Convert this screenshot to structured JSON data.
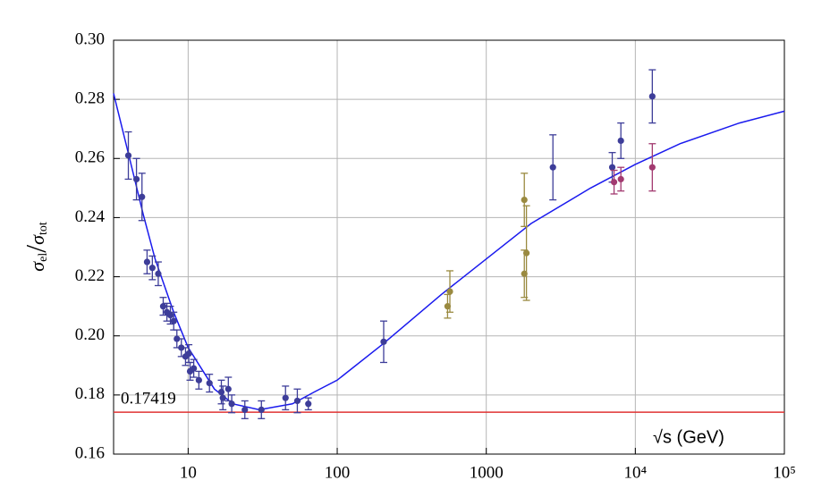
{
  "chart_data": {
    "type": "scatter",
    "xlabel": "√s (GeV)",
    "ylabel": [
      "σ",
      "el",
      "/",
      "σ",
      "tot"
    ],
    "log_x": true,
    "grid": true,
    "xlim": [
      3.16,
      100000
    ],
    "ylim": [
      0.16,
      0.3
    ],
    "xticks": [
      10,
      100,
      1000,
      {
        "value": 10000,
        "label": "10⁴"
      },
      {
        "value": 100000,
        "label": "10⁵"
      }
    ],
    "yticks": [
      0.16,
      0.18,
      {
        "value": 0.2,
        "label": "0.20"
      },
      0.22,
      0.24,
      0.26,
      0.28,
      {
        "value": 0.3,
        "label": "0.30"
      }
    ],
    "reference_line": {
      "value": 0.17419,
      "color": "#e03232"
    },
    "fit": {
      "color": "#1a1aee",
      "x": [
        3.16,
        4,
        5,
        6,
        8,
        10,
        15,
        20,
        30,
        50,
        70,
        100,
        200,
        500,
        1000,
        2000,
        5000,
        10000,
        20000,
        50000,
        100000
      ],
      "values": [
        0.282,
        0.261,
        0.241,
        0.226,
        0.208,
        0.196,
        0.182,
        0.177,
        0.175,
        0.177,
        0.181,
        0.185,
        0.197,
        0.214,
        0.226,
        0.238,
        0.25,
        0.258,
        0.265,
        0.272,
        0.276
      ]
    },
    "series": [
      {
        "color": "#3d3d99",
        "x": [
          3.97,
          4.5,
          4.9,
          5.3,
          5.75,
          6.3,
          6.8,
          7.2,
          7.6,
          8.0,
          8.4,
          9.0,
          9.6,
          10.1,
          10.3,
          10.9,
          11.8,
          13.9,
          16.7,
          17.1,
          18.6,
          19.6,
          24,
          31,
          45,
          54,
          64,
          205,
          2800,
          7000,
          8000,
          13000
        ],
        "values": [
          0.261,
          0.253,
          0.247,
          0.225,
          0.223,
          0.221,
          0.21,
          0.208,
          0.207,
          0.205,
          0.199,
          0.196,
          0.193,
          0.194,
          0.188,
          0.189,
          0.185,
          0.184,
          0.181,
          0.179,
          0.182,
          0.177,
          0.175,
          0.175,
          0.179,
          0.178,
          0.177,
          0.198,
          0.257,
          0.257,
          0.266,
          0.281
        ],
        "errors": [
          0.008,
          0.007,
          0.008,
          0.004,
          0.004,
          0.004,
          0.003,
          0.003,
          0.003,
          0.003,
          0.003,
          0.003,
          0.003,
          0.003,
          0.003,
          0.003,
          0.003,
          0.003,
          0.004,
          0.004,
          0.004,
          0.003,
          0.003,
          0.003,
          0.004,
          0.004,
          0.002,
          0.007,
          0.011,
          0.005,
          0.006,
          0.009
        ]
      },
      {
        "color": "#9a8a40",
        "x": [
          550,
          570,
          1800,
          1800,
          1860
        ],
        "values": [
          0.21,
          0.215,
          0.221,
          0.246,
          0.228
        ],
        "errors": [
          0.004,
          0.007,
          0.008,
          0.009,
          0.016
        ]
      },
      {
        "color": "#a23a70",
        "x": [
          7200,
          8000,
          13000
        ],
        "values": [
          0.252,
          0.253,
          0.257
        ],
        "errors": [
          0.004,
          0.004,
          0.008
        ]
      }
    ]
  }
}
